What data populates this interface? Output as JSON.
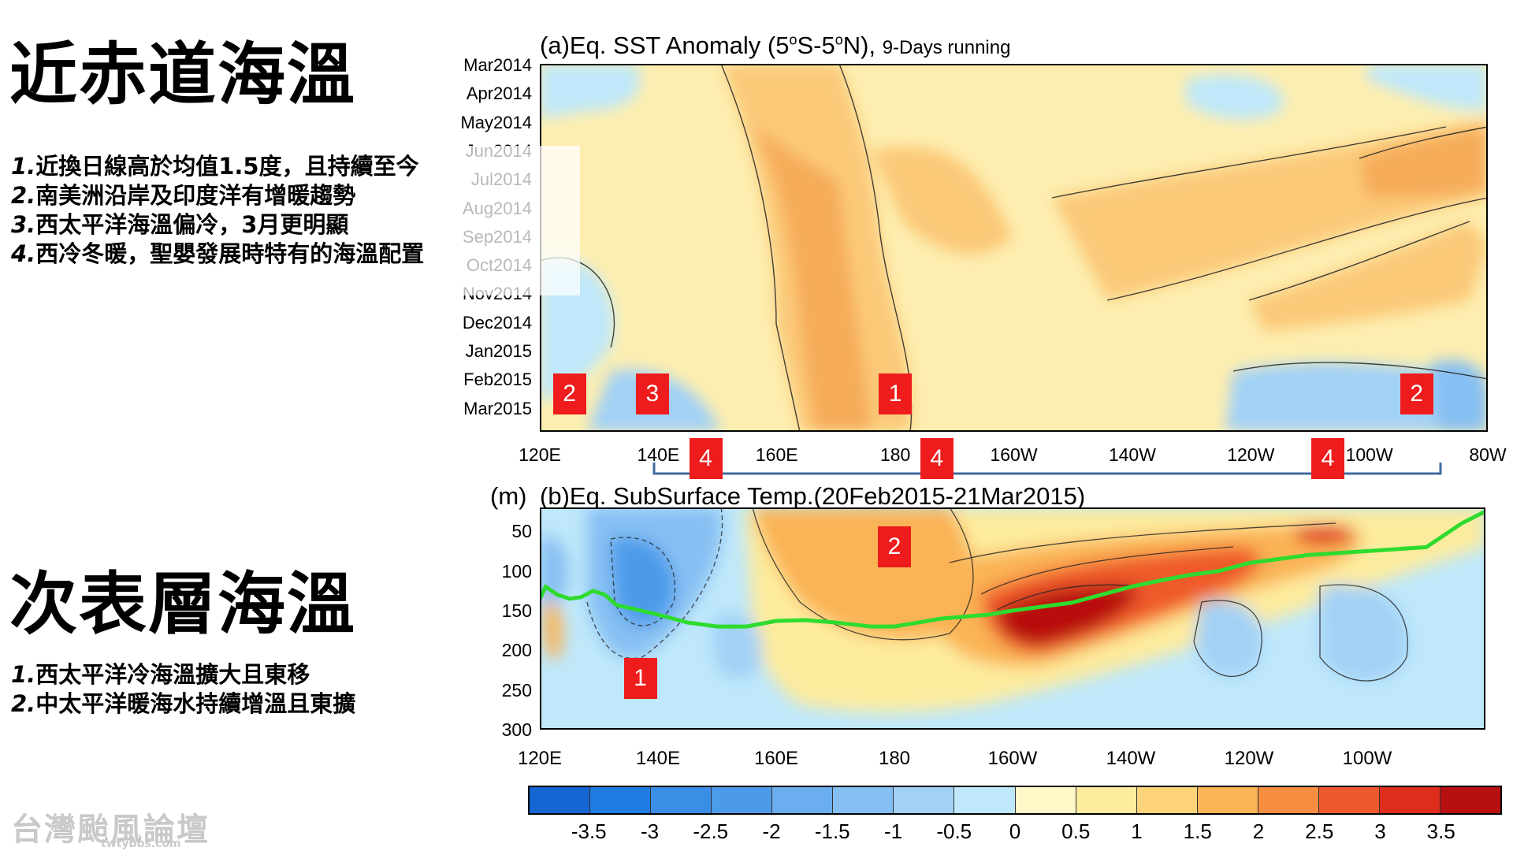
{
  "slide": {
    "section1_title": "近赤道海溫",
    "section1_notes": [
      {
        "num": "1.",
        "text": "近換日線高於均值1.5度，且持續至今"
      },
      {
        "num": "2.",
        "text": "南美洲沿岸及印度洋有增暖趨勢"
      },
      {
        "num": "3.",
        "text": "西太平洋海溫偏冷，3月更明顯"
      },
      {
        "num": "4.",
        "text": "西冷冬暖，聖嬰發展時特有的海溫配置"
      }
    ],
    "section2_title": "次表層海溫",
    "section2_notes": [
      {
        "num": "1.",
        "text": "西太平洋冷海溫擴大且東移"
      },
      {
        "num": "2.",
        "text": "中太平洋暖海水持續增溫且東擴"
      }
    ],
    "watermark": "台灣颱風論壇",
    "watermark_sub": "twtybbs.com"
  },
  "chart_data": [
    {
      "type": "heatmap",
      "title": "(a)Eq. SST Anomaly (5°S-5°N),",
      "title_main": "(a)Eq. SST Anomaly (5",
      "title_deg1": "o",
      "title_mid": "S-5",
      "title_deg2": "o",
      "title_end": "N),",
      "subtitle": "9-Days running",
      "x_ticks": [
        "120E",
        "140E",
        "160E",
        "180",
        "160W",
        "140W",
        "120W",
        "100W",
        "80W"
      ],
      "y_ticks": [
        "Mar2014",
        "Apr2014",
        "May2014",
        "Jun2014",
        "Jul2014",
        "Aug2014",
        "Sep2014",
        "Oct2014",
        "Nov2014",
        "Dec2014",
        "Jan2015",
        "Feb2015",
        "Mar2015"
      ],
      "annotations": [
        {
          "label": "2",
          "lon": 125,
          "time": "Feb2015"
        },
        {
          "label": "3",
          "lon": 139,
          "time": "Feb2015"
        },
        {
          "label": "1",
          "lon": 180,
          "time": "Feb2015"
        },
        {
          "label": "2",
          "lon": 268,
          "time": "Feb2015"
        },
        {
          "label": "4",
          "lon": 148,
          "time": "axis"
        },
        {
          "label": "4",
          "lon": 187,
          "time": "axis"
        },
        {
          "label": "4",
          "lon": 253,
          "time": "axis"
        }
      ],
      "bracket": {
        "from_lon": 140,
        "to_lon": 270
      }
    },
    {
      "type": "heatmap",
      "title": "(b)Eq. SubSurface Temp.(20Feb2015-21Mar2015)",
      "ylabel": "(m)",
      "x_ticks": [
        "120E",
        "140E",
        "160E",
        "180",
        "160W",
        "140W",
        "120W",
        "100W"
      ],
      "y_ticks": [
        "50",
        "100",
        "150",
        "200",
        "250",
        "300"
      ],
      "ylim": [
        20,
        300
      ],
      "xlim": [
        120,
        280
      ],
      "annotations": [
        {
          "label": "2",
          "lon": 180,
          "depth": 70
        },
        {
          "label": "1",
          "lon": 137,
          "depth": 235
        }
      ],
      "thermocline_lon": [
        120,
        121,
        123,
        125,
        127,
        129,
        131,
        133,
        136,
        140,
        145,
        150,
        155,
        160,
        165,
        170,
        176,
        180,
        188,
        196,
        200,
        205,
        210,
        215,
        220,
        225,
        230,
        235,
        240,
        245,
        250,
        260,
        270,
        276,
        280
      ],
      "thermocline_depth": [
        135,
        120,
        130,
        135,
        133,
        125,
        130,
        143,
        148,
        155,
        165,
        170,
        170,
        163,
        162,
        165,
        170,
        170,
        160,
        155,
        150,
        145,
        140,
        130,
        120,
        112,
        105,
        100,
        90,
        85,
        80,
        75,
        70,
        40,
        25
      ]
    }
  ],
  "colorbar": {
    "labels": [
      "-3.5",
      "-3",
      "-2.5",
      "-2",
      "-1.5",
      "-1",
      "-0.5",
      "0",
      "0.5",
      "1",
      "1.5",
      "2",
      "2.5",
      "3",
      "3.5"
    ],
    "colors": [
      "#1565d2",
      "#1e7be0",
      "#3a8ee6",
      "#4c9bea",
      "#6aaef0",
      "#86bff3",
      "#a2d1f6",
      "#bfe8fa",
      "#fef7c8",
      "#fdeb9e",
      "#fdd37a",
      "#fab355",
      "#f68d40",
      "#ef5a2c",
      "#df2d1b",
      "#b81010"
    ]
  },
  "plot_colors": {
    "sst_base": "#fdeeb0",
    "thermocline": "#2edb2e"
  }
}
